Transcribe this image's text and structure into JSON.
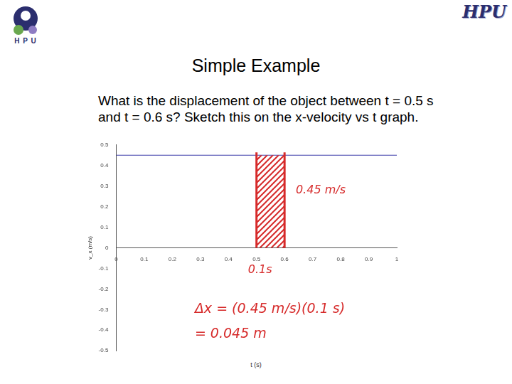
{
  "slide": {
    "title": "Simple Example",
    "question": [
      "What is the displacement of the object between t = 0.5 s",
      "and t = 0.6 s? Sketch this on the x-velocity vs t graph."
    ],
    "logo_left": "H P U",
    "logo_right": "HPU"
  },
  "chart_data": {
    "type": "line",
    "x_label": "t (s)",
    "y_label": "v_x (m/s)",
    "x": [
      0,
      1
    ],
    "values": [
      0.45,
      0.45
    ],
    "color": "#3a3aa8",
    "xlim": [
      0,
      1
    ],
    "xticks": [
      0,
      0.1,
      0.2,
      0.3,
      0.4,
      0.5,
      0.6,
      0.7,
      0.8,
      0.9,
      1
    ],
    "ylim": [
      -0.5,
      0.5
    ],
    "yticks": [
      -0.5,
      -0.4,
      -0.3,
      -0.2,
      -0.1,
      0,
      0.1,
      0.2,
      0.3,
      0.4,
      0.5
    ],
    "grid": false,
    "shaded": {
      "x": [
        0.5,
        0.6
      ],
      "color": "#d62a2a"
    },
    "annotations": [
      "0.45 m/s",
      "0.1s",
      "Δx = (0.45 m/s)(0.1 s)",
      "= 0.045 m"
    ]
  }
}
